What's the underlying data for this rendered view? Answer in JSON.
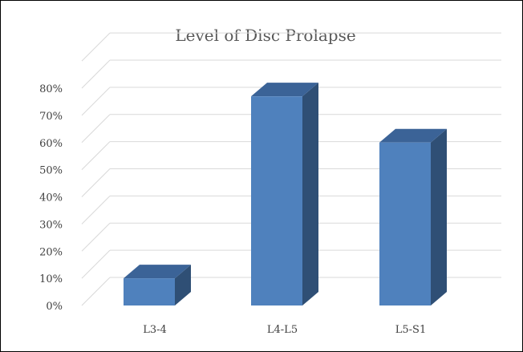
{
  "chart_data": {
    "type": "bar",
    "title": "Level of Disc Prolapse",
    "categories": [
      "L3-4",
      "L4-L5",
      "L5-S1"
    ],
    "values": [
      10,
      77,
      60
    ],
    "unit": "%",
    "ylim": [
      0,
      80
    ],
    "yticks": [
      "0%",
      "10%",
      "20%",
      "30%",
      "40%",
      "50%",
      "60%",
      "70%",
      "80%"
    ],
    "grid": true,
    "legend": "none",
    "style": "3d-column"
  },
  "colors": {
    "bar_front": "#4f81bd",
    "bar_top": "#3b6397",
    "bar_side": "#2f4f75",
    "grid": "#d9d9d9",
    "text": "#595959"
  }
}
